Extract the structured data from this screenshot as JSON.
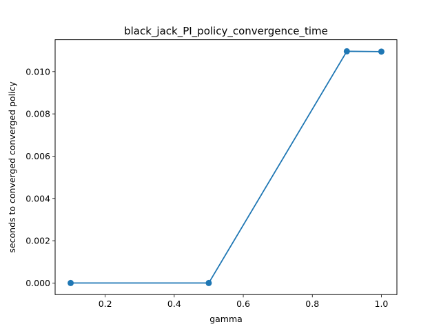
{
  "chart_data": {
    "type": "line",
    "title": "black_jack_PI_policy_convergence_time",
    "xlabel": "gamma",
    "ylabel": "seconds to converged converged policy",
    "xlim": [
      0.055,
      1.045
    ],
    "ylim": [
      -0.000548,
      0.011508
    ],
    "xticks": [
      {
        "value": 0.2,
        "label": "0.2"
      },
      {
        "value": 0.4,
        "label": "0.4"
      },
      {
        "value": 0.6,
        "label": "0.6"
      },
      {
        "value": 0.8,
        "label": "0.8"
      },
      {
        "value": 1.0,
        "label": "1.0"
      }
    ],
    "yticks": [
      {
        "value": 0.0,
        "label": "0.000"
      },
      {
        "value": 0.002,
        "label": "0.002"
      },
      {
        "value": 0.004,
        "label": "0.004"
      },
      {
        "value": 0.006,
        "label": "0.006"
      },
      {
        "value": 0.008,
        "label": "0.008"
      },
      {
        "value": 0.01,
        "label": "0.010"
      }
    ],
    "grid": false,
    "legend": "none",
    "series": [
      {
        "color": "#1f77b4",
        "marker": "circle",
        "x": [
          0.1,
          0.5,
          0.9,
          1.0
        ],
        "y": [
          0.0,
          0.0,
          0.01096,
          0.010945
        ]
      }
    ]
  }
}
